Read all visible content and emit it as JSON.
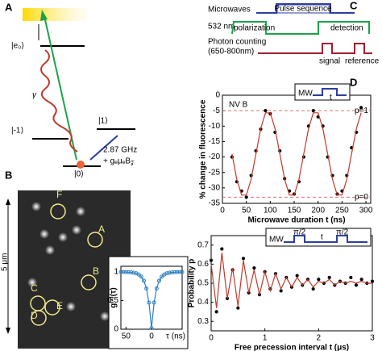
{
  "panels": {
    "A": {
      "letter": "A",
      "excited": "|e₀⟩",
      "decay": "γ",
      "minus": "|-1⟩",
      "plus": "|1⟩",
      "ground": "|0⟩",
      "freq": "2.87 GHz",
      "zeeman": "+ gₑμₑB𝓏"
    },
    "B": {
      "letter": "B",
      "scale": "5 μm",
      "spots": [
        "F",
        "A",
        "B",
        "C",
        "D",
        "E"
      ]
    },
    "C": {
      "letter": "C",
      "microwaves": "Microwaves",
      "pulse": "Pulse sequence",
      "laser": "532 nm",
      "polarization": "polarization",
      "detection": "detection",
      "counting": "Photon counting",
      "band": "(650-800nm)",
      "signal": "signal",
      "reference": "reference"
    },
    "D": {
      "letter": "D",
      "inset_mw": "MW",
      "inset_t": "t"
    },
    "E": {
      "letter": "E",
      "inset_mw": "MW",
      "inset_pi1": "π/2",
      "inset_t": "t",
      "inset_pi2": "π/2"
    }
  },
  "chart_data": [
    {
      "type": "scatter",
      "annotation": "NV B",
      "x_label": "Microwave duration t (ns)",
      "y_label": "% change in fluorescence",
      "x": [
        20,
        30,
        40,
        50,
        60,
        70,
        80,
        90,
        100,
        110,
        120,
        130,
        140,
        150,
        160,
        170,
        180,
        190,
        200,
        210,
        220,
        230,
        240,
        250,
        260,
        270,
        280,
        290
      ],
      "series": [
        {
          "color": "#000000",
          "marker": "dot",
          "values": [
            -20,
            -28,
            -31,
            -33,
            -26,
            -18,
            -11,
            -5,
            -6,
            -12,
            -18,
            -27,
            -31,
            -32,
            -28,
            -20,
            -10,
            -5,
            -7,
            -10,
            -20,
            -26,
            -32,
            -31,
            -26,
            -17,
            -12,
            -4
          ]
        },
        {
          "color": "#c0392b",
          "marker": "line",
          "values": [
            -19,
            -27.2,
            -32.3,
            -32.3,
            -27.2,
            -19,
            -10.8,
            -5.7,
            -5.7,
            -10.8,
            -19,
            -27.2,
            -32.3,
            -32.3,
            -27.2,
            -19,
            -10.8,
            -5.7,
            -5.7,
            -10.8,
            -19,
            -27.2,
            -32.3,
            -32.3,
            -27.2,
            -19,
            -10.8,
            -5.7
          ]
        }
      ],
      "reference_lines": [
        {
          "value": -5,
          "label": "p=1"
        },
        {
          "value": -33,
          "label": "p=0"
        }
      ],
      "xlim": [
        0,
        310
      ],
      "ylim": [
        -35,
        0
      ],
      "xticks": [
        0,
        50,
        100,
        150,
        200,
        250,
        300
      ],
      "yticks": [
        0,
        -5,
        -10,
        -15,
        -20,
        -25,
        -30,
        -35
      ]
    },
    {
      "type": "scatter",
      "x_label": "Free precession interval t (μs)",
      "y_label": "Probability p",
      "x": [
        0,
        0.1,
        0.2,
        0.3,
        0.4,
        0.5,
        0.6,
        0.7,
        0.8,
        0.9,
        1,
        1.1,
        1.2,
        1.3,
        1.4,
        1.5,
        1.6,
        1.7,
        1.8,
        1.9,
        2,
        2.1,
        2.2,
        2.3,
        2.4,
        2.5,
        2.6,
        2.7,
        2.8,
        2.9,
        3
      ],
      "series": [
        {
          "color": "#000000",
          "marker": "dot",
          "values": [
            0.62,
            0.35,
            0.68,
            0.42,
            0.57,
            0.37,
            0.63,
            0.45,
            0.58,
            0.44,
            0.56,
            0.47,
            0.55,
            0.46,
            0.53,
            0.48,
            0.54,
            0.49,
            0.52,
            0.47,
            0.52,
            0.5,
            0.53,
            0.49,
            0.51,
            0.5,
            0.53,
            0.49,
            0.52,
            0.5,
            0.51
          ]
        },
        {
          "color": "#c0392b",
          "marker": "line",
          "values": [
            0.6,
            0.37,
            0.66,
            0.42,
            0.58,
            0.38,
            0.62,
            0.45,
            0.57,
            0.44,
            0.56,
            0.46,
            0.55,
            0.47,
            0.53,
            0.48,
            0.53,
            0.49,
            0.52,
            0.48,
            0.51,
            0.5,
            0.52,
            0.49,
            0.51,
            0.5,
            0.51,
            0.5,
            0.51,
            0.5,
            0.5
          ]
        }
      ],
      "xlim": [
        0,
        3
      ],
      "ylim": [
        0.25,
        0.75
      ],
      "xticks": [
        0,
        1,
        2,
        3
      ],
      "yticks": [
        0.3,
        0.4,
        0.5,
        0.6,
        0.7
      ]
    },
    {
      "type": "scatter",
      "y_label": "g⁽²⁾(τ)",
      "x_unit": "τ (ns)",
      "x": [
        -60,
        -55,
        -50,
        -45,
        -40,
        -35,
        -30,
        -25,
        -20,
        -15,
        -10,
        -5,
        0,
        5,
        10,
        15,
        20,
        25,
        30,
        35,
        40,
        45,
        50,
        55,
        60
      ],
      "series": [
        {
          "color": "#2a7fc1",
          "marker": "dotline",
          "values": [
            1,
            1,
            1,
            0.996,
            0.993,
            0.987,
            0.977,
            0.956,
            0.918,
            0.847,
            0.713,
            0.465,
            0.02,
            0.465,
            0.713,
            0.847,
            0.918,
            0.956,
            0.977,
            0.987,
            0.993,
            0.996,
            1,
            1,
            1
          ]
        }
      ],
      "xlim": [
        -60,
        60
      ],
      "ylim": [
        0,
        1.1
      ],
      "xticks": [
        {
          "value": -50,
          "label": "50"
        },
        0
      ],
      "yticks": [
        0,
        0.5,
        1
      ]
    }
  ]
}
